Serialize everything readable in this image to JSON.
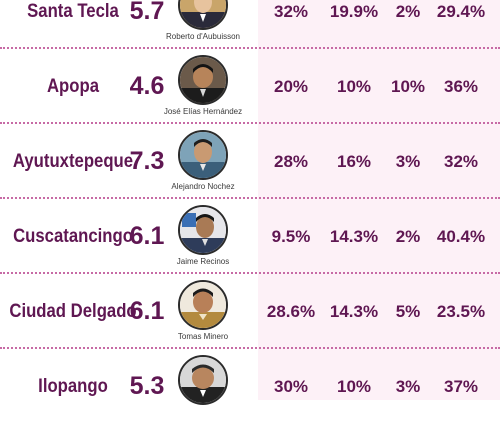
{
  "rows": [
    {
      "municipality": "Santa Tecla",
      "score": "5.7",
      "mayor": "Roberto d'Aubuisson",
      "p1": "32%",
      "p2": "19.9%",
      "p3": "2%",
      "p4": "29.4%"
    },
    {
      "municipality": "Apopa",
      "score": "4.6",
      "mayor": "José Elías Hernández",
      "p1": "20%",
      "p2": "10%",
      "p3": "10%",
      "p4": "36%"
    },
    {
      "municipality": "Ayutuxtepeque",
      "score": "7.3",
      "mayor": "Alejandro Nochez",
      "p1": "28%",
      "p2": "16%",
      "p3": "3%",
      "p4": "32%"
    },
    {
      "municipality": "Cuscatancingo",
      "score": "6.1",
      "mayor": "Jaime Recinos",
      "p1": "9.5%",
      "p2": "14.3%",
      "p3": "2%",
      "p4": "40.4%"
    },
    {
      "municipality": "Ciudad Delgado",
      "score": "6.1",
      "mayor": "Tomas Minero",
      "p1": "28.6%",
      "p2": "14.3%",
      "p3": "5%",
      "p4": "23.5%"
    },
    {
      "municipality": "Ilopango",
      "score": "5.3",
      "mayor": "",
      "p1": "30%",
      "p2": "10%",
      "p3": "3%",
      "p4": "37%"
    }
  ]
}
